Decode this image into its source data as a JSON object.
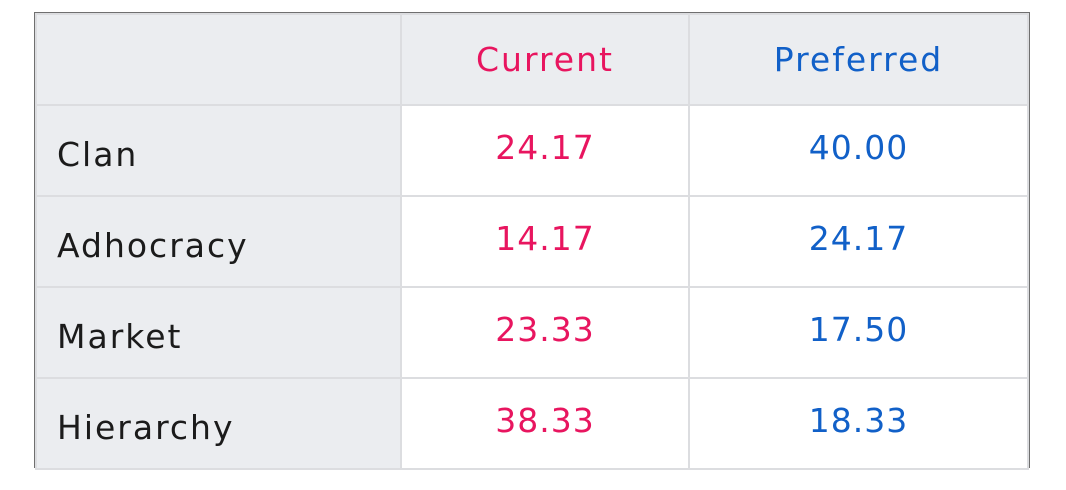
{
  "colors": {
    "current": "#e8155f",
    "preferred": "#1160c8",
    "header_bg": "#ebedf0",
    "label_text": "#1b1b1b"
  },
  "chart_data": {
    "type": "table",
    "columns": [
      "",
      "Current",
      "Preferred"
    ],
    "rows": [
      {
        "label": "Clan",
        "current": "24.17",
        "preferred": "40.00"
      },
      {
        "label": "Adhocracy",
        "current": "14.17",
        "preferred": "24.17"
      },
      {
        "label": "Market",
        "current": "23.33",
        "preferred": "17.50"
      },
      {
        "label": "Hierarchy",
        "current": "38.33",
        "preferred": "18.33"
      }
    ]
  }
}
